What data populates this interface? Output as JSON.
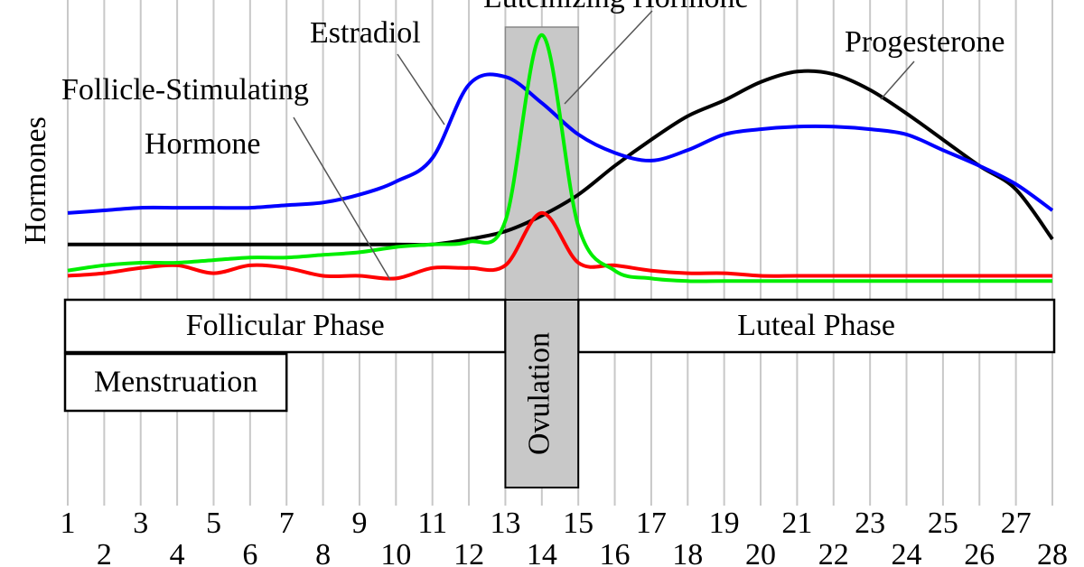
{
  "chart_data": {
    "type": "line",
    "y_label": "Hormones",
    "x": [
      1,
      2,
      3,
      4,
      5,
      6,
      7,
      8,
      9,
      10,
      11,
      12,
      13,
      14,
      15,
      16,
      17,
      18,
      19,
      20,
      21,
      22,
      23,
      24,
      25,
      26,
      27,
      28
    ],
    "xlim": [
      1,
      28
    ],
    "ylim": [
      0,
      100
    ],
    "grid": true,
    "series": [
      {
        "label_lines": [
          "Estradiol"
        ],
        "color": "#0000ff",
        "values": [
          29,
          30,
          31,
          31,
          31,
          31,
          32,
          33,
          36,
          41,
          50,
          78,
          81,
          71,
          59,
          52,
          49,
          53,
          59,
          61,
          62,
          62,
          61,
          59,
          53,
          47,
          40,
          30
        ]
      },
      {
        "label_lines": [
          "Luteinizing  Hormone"
        ],
        "color": "#00ee00",
        "values": [
          7,
          9,
          10,
          10,
          11,
          12,
          12,
          13,
          14,
          16,
          17,
          18,
          26,
          97,
          24,
          7,
          4,
          3,
          3,
          3,
          3,
          3,
          3,
          3,
          3,
          3,
          3,
          3
        ]
      },
      {
        "label_lines": [
          "Follicle-Stimulating",
          "Hormone"
        ],
        "color": "#ff0000",
        "values": [
          5,
          6,
          8,
          9,
          6,
          9,
          8,
          5,
          5,
          4,
          8,
          8,
          9,
          29,
          10,
          9,
          7,
          6,
          6,
          5,
          5,
          5,
          5,
          5,
          5,
          5,
          5,
          5
        ]
      },
      {
        "label_lines": [
          "Progesterone"
        ],
        "color": "#000000",
        "values": [
          17,
          17,
          17,
          17,
          17,
          17,
          17,
          17,
          17,
          17,
          17,
          19,
          22,
          28,
          36,
          47,
          57,
          66,
          72,
          79,
          83,
          82,
          76,
          67,
          57,
          47,
          38,
          19
        ]
      }
    ],
    "phases": [
      {
        "label": "Follicular Phase",
        "start": 1,
        "end": 13
      },
      {
        "label": "Luteal Phase",
        "start": 15,
        "end": 28
      },
      {
        "label": "Menstruation",
        "start": 1,
        "end": 7
      },
      {
        "label": "Ovulation",
        "start": 13,
        "end": 15
      }
    ]
  }
}
